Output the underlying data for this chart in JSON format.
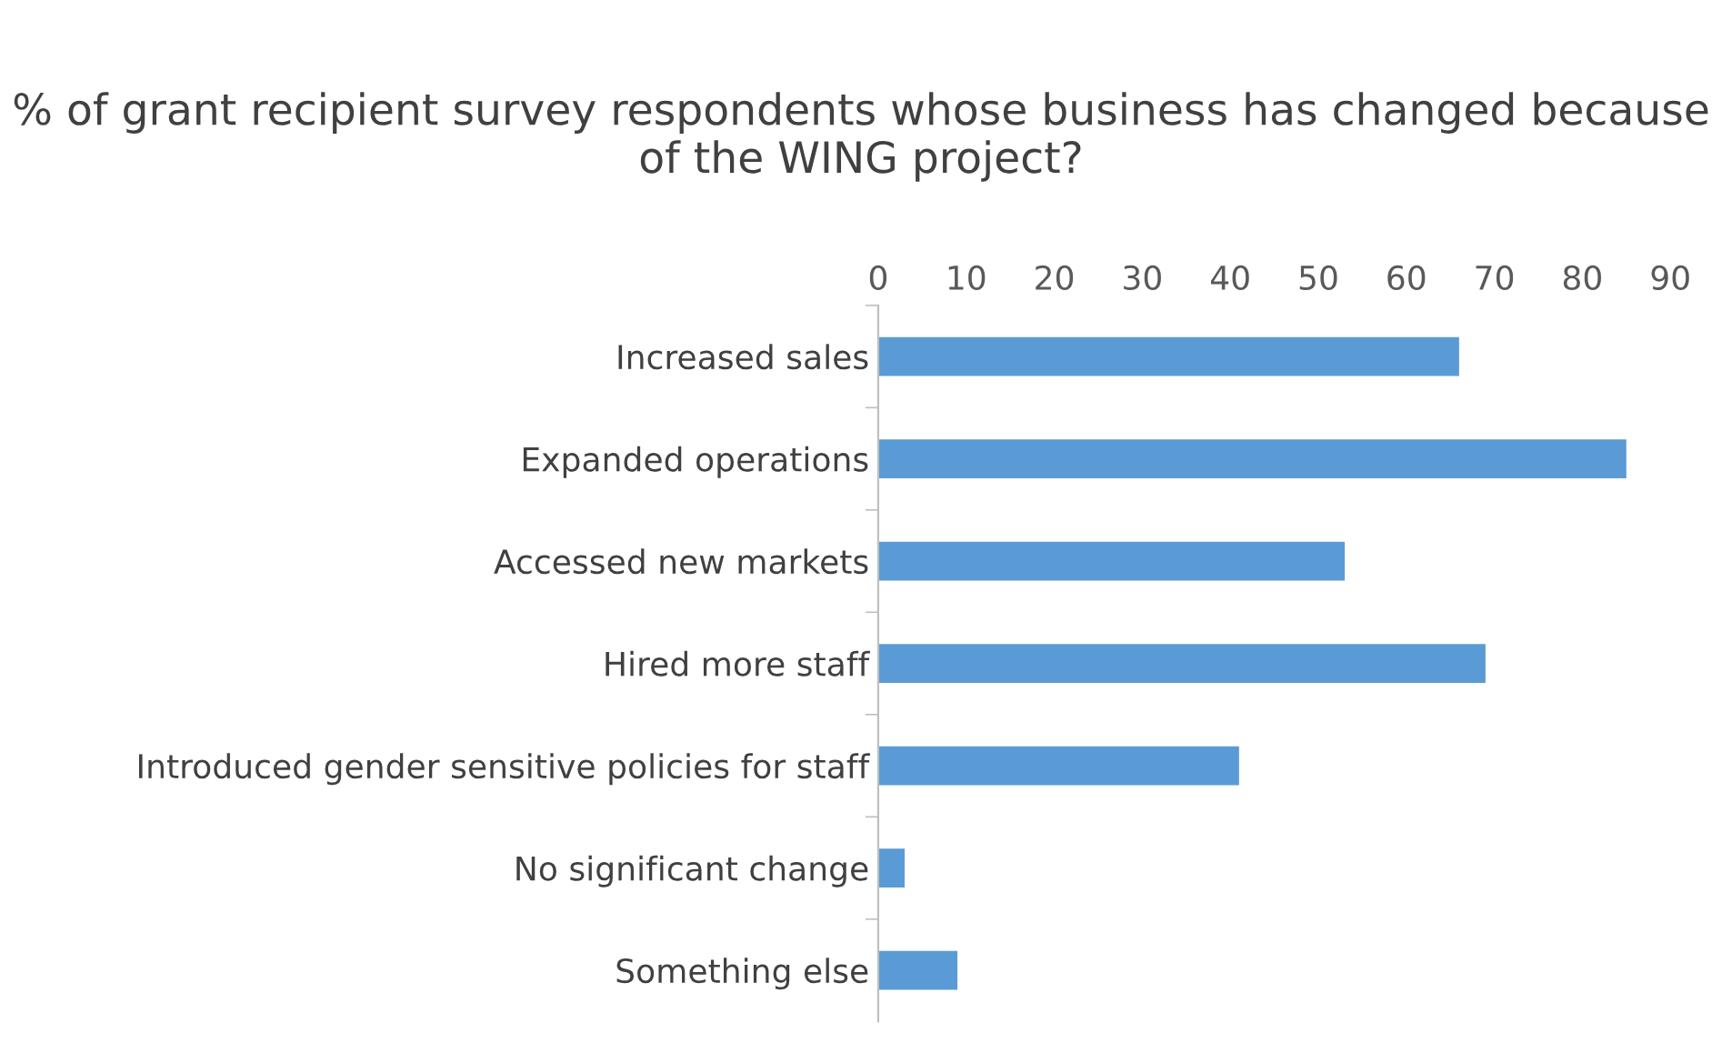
{
  "chart_data": {
    "type": "bar",
    "orientation": "horizontal",
    "title": "% of grant recipient survey respondents whose business has changed because of the WING project?",
    "categories": [
      "Increased sales",
      "Expanded operations",
      "Accessed new markets",
      "Hired more staff",
      "Introduced gender sensitive policies for staff",
      "No significant change",
      "Something else"
    ],
    "values": [
      66,
      85,
      53,
      69,
      41,
      3,
      9
    ],
    "color": "#5b9bd5",
    "xlim": [
      0,
      90
    ],
    "xticks": [
      0,
      10,
      20,
      30,
      40,
      50,
      60,
      70,
      80,
      90
    ],
    "grid": false,
    "legend": false
  }
}
